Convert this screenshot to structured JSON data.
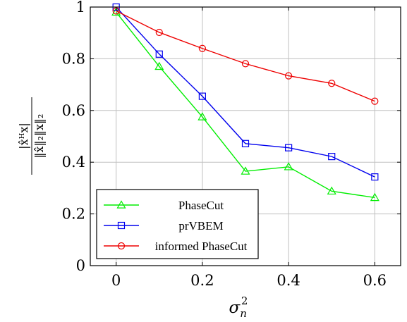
{
  "chart_data": {
    "type": "line",
    "x": [
      0,
      0.1,
      0.2,
      0.3,
      0.4,
      0.5,
      0.6
    ],
    "xlim": [
      -0.06,
      0.66
    ],
    "ylim": [
      0,
      1
    ],
    "xticks": [
      "0",
      "0.2",
      "0.4",
      "0.6"
    ],
    "xtick_values": [
      0,
      0.2,
      0.4,
      0.6
    ],
    "yticks": [
      "0",
      "0.2",
      "0.4",
      "0.6",
      "0.8",
      "1"
    ],
    "ytick_values": [
      0,
      0.2,
      0.4,
      0.6,
      0.8,
      1
    ],
    "grid": true,
    "legend_position": "bottom-left",
    "xlabel": {
      "base": "σ",
      "sup": "2",
      "sub": "n"
    },
    "ylabel": {
      "numerator": "|x̂ᴴx|",
      "denominator": "‖x̂‖₂‖x‖₂"
    },
    "series": [
      {
        "name": "PhaseCut",
        "color": "#00ee00",
        "marker": "triangle",
        "values": [
          0.98,
          0.77,
          0.575,
          0.365,
          0.382,
          0.288,
          0.263
        ]
      },
      {
        "name": "prVBEM",
        "color": "#0000ee",
        "marker": "square",
        "values": [
          1.0,
          0.818,
          0.655,
          0.472,
          0.456,
          0.422,
          0.343
        ]
      },
      {
        "name": "informed PhaseCut",
        "color": "#ee0000",
        "marker": "circle",
        "values": [
          0.985,
          0.902,
          0.84,
          0.781,
          0.734,
          0.705,
          0.636
        ]
      }
    ]
  }
}
